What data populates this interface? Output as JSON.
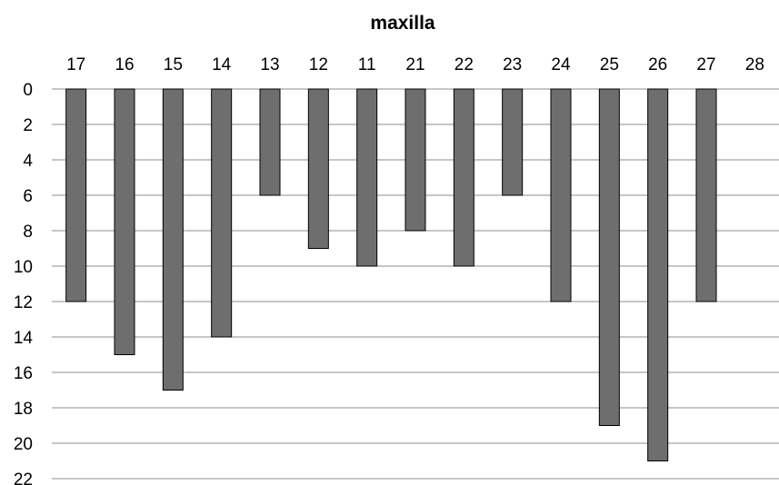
{
  "chart_data": {
    "type": "bar",
    "orientation": "vertical-inverted",
    "title": "maxilla",
    "xlabel": "",
    "ylabel": "",
    "categories": [
      "17",
      "16",
      "15",
      "14",
      "13",
      "12",
      "11",
      "21",
      "22",
      "23",
      "24",
      "25",
      "26",
      "27",
      "28"
    ],
    "values": [
      12,
      15,
      17,
      14,
      6,
      9,
      10,
      8,
      10,
      6,
      12,
      19,
      21,
      12,
      0
    ],
    "ylim": [
      0,
      22
    ],
    "yticks": [
      0,
      2,
      4,
      6,
      8,
      10,
      12,
      14,
      16,
      18,
      20,
      22
    ],
    "y_axis_inverted": true,
    "x_axis_position": "top",
    "grid": true,
    "legend": "none",
    "bar_color": "#6e6e6e"
  }
}
